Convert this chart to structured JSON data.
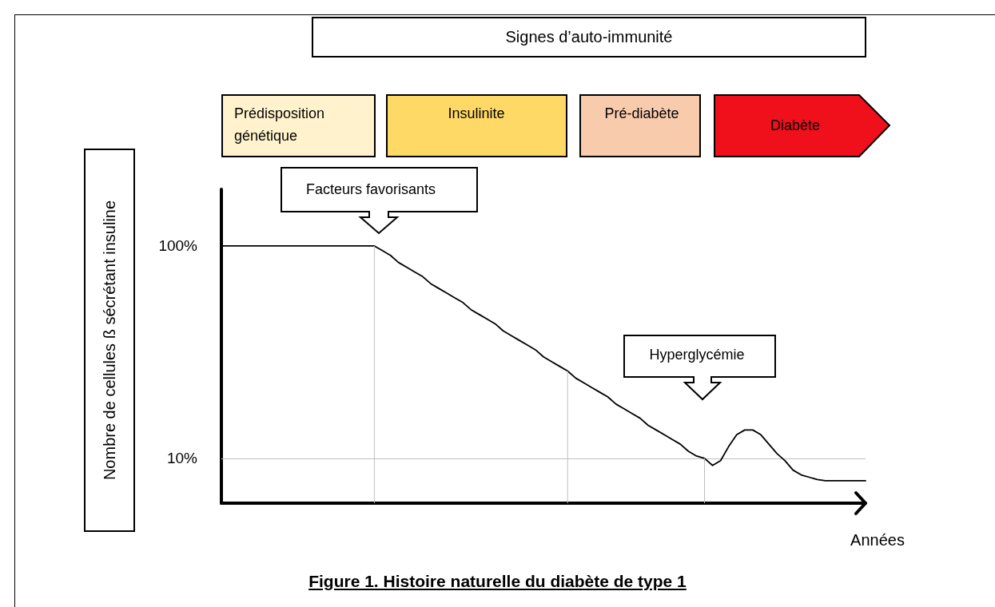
{
  "chart_data": {
    "type": "line",
    "title": "Figure 1. Histoire naturelle du diabète de type 1",
    "xlabel": "Années",
    "ylabel": "Nombre de cellules ß sécrétant insuline",
    "categories": [
      null,
      null,
      null,
      null,
      null,
      null,
      null,
      null,
      null,
      null,
      null,
      null,
      null,
      null,
      null,
      null,
      null,
      null,
      null,
      null,
      null,
      null,
      null,
      null,
      null,
      null,
      null,
      null,
      null,
      null,
      null,
      null,
      null,
      null,
      null,
      null,
      null,
      null,
      null,
      null,
      null,
      null,
      null,
      null,
      null,
      null,
      null,
      null,
      null,
      null,
      null,
      null,
      null,
      null,
      null,
      null,
      null,
      null,
      null,
      null,
      null,
      null,
      null,
      null,
      null,
      null,
      null,
      null,
      null,
      null,
      null,
      null,
      null,
      null,
      null,
      null,
      null,
      null,
      null,
      null,
      null
    ],
    "series": [
      {
        "color": "#000000",
        "values": [
          100,
          100,
          100,
          100,
          100,
          100,
          100,
          100,
          100,
          100,
          100,
          100,
          100,
          100,
          100,
          100,
          100,
          100,
          100,
          100,
          98,
          96,
          93,
          91,
          89,
          87,
          84,
          82,
          80,
          78,
          76,
          73,
          71,
          69,
          67,
          64,
          62,
          60,
          58,
          56,
          53,
          51,
          49,
          47,
          44,
          42,
          40,
          38,
          36,
          33,
          31,
          29,
          27,
          24,
          22,
          20,
          18,
          16,
          13,
          11,
          10,
          7,
          9,
          15,
          20,
          22,
          22,
          20,
          16,
          12,
          9,
          5,
          3,
          2,
          1,
          0.5,
          0.5,
          0.5,
          0.5,
          0.5,
          0.5
        ]
      }
    ],
    "ylim": [
      -9,
      124
    ],
    "yticks": [
      {
        "value": 10,
        "label": "10%"
      },
      {
        "value": 100,
        "label": "100%"
      }
    ],
    "marker": "none",
    "line_style": "solid",
    "tick_labels": "y",
    "ref_lines": [
      {
        "axis": "y",
        "value": 10,
        "color": "#bfbfbf"
      }
    ],
    "annotations": [
      "Signes d’auto-immunité",
      "Prédisposition génétique",
      "Insulinite",
      "Pré-diabète",
      "Diabète",
      "Facteurs favorisants",
      "Hyperglycémie"
    ]
  }
}
